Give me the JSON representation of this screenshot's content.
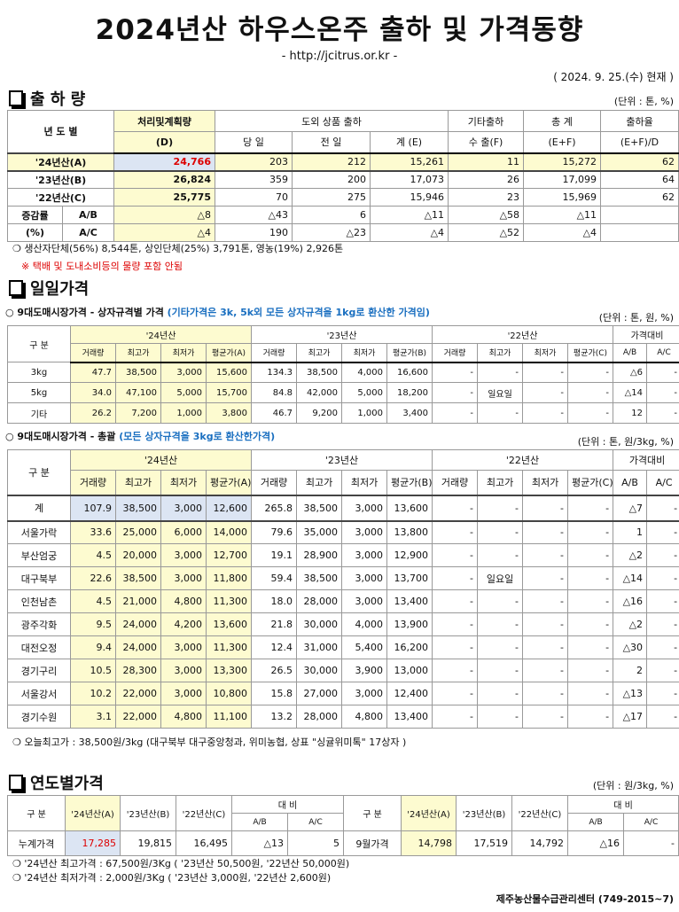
{
  "title": "2024년산 하우스온주 출하 및 가격동향",
  "url": "- http://jcitrus.or.kr -",
  "date": "( 2024. 9. 25.(수) 현재 )",
  "shipment": {
    "heading": "출 하 량",
    "unit": "(단위 : 톤, %)",
    "headers": {
      "year": "년 도 별",
      "plan": "처리및계획량",
      "plan_sub": "(D)",
      "outside": "도외 상품 출하",
      "today": "당 일",
      "prev": "전 일",
      "sum": "계 (E)",
      "other": "기타출하",
      "export": "수 출(F)",
      "total": "총   계",
      "total_sub": "(E+F)",
      "rate": "출하율",
      "rate_sub": "(E+F)/D"
    },
    "rows": [
      {
        "label": "'24년산(A)",
        "cells": [
          "24,766",
          "203",
          "212",
          "15,261",
          "11",
          "15,272",
          "62"
        ]
      },
      {
        "label": "'23년산(B)",
        "cells": [
          "26,824",
          "359",
          "200",
          "17,073",
          "26",
          "17,099",
          "64"
        ]
      },
      {
        "label": "'22년산(C)",
        "cells": [
          "25,775",
          "70",
          "275",
          "15,946",
          "23",
          "15,969",
          "62"
        ]
      }
    ],
    "change_label": "증감률",
    "change_pct": "(%)",
    "change": [
      {
        "label": "A/B",
        "cells": [
          "△8",
          "△43",
          "6",
          "△11",
          "△58",
          "△11",
          ""
        ]
      },
      {
        "label": "A/C",
        "cells": [
          "△4",
          "190",
          "△23",
          "△4",
          "△52",
          "△4",
          ""
        ]
      }
    ],
    "note1": "❍ 생산자단체(56%) 8,544톤, 상인단체(25%) 3,791톤, 영농(19%) 2,926톤",
    "note2": "※ 택배 및 도내소비등의 물량 포함 안됨"
  },
  "daily": {
    "heading": "일일가격",
    "spec": {
      "caption": "○ 9대도매시장가격 - 상자규격별 가격 ",
      "caption_blue": "(기타가격은 3k, 5k외 모든 상자규격을 1kg로 환산한 가격임)",
      "unit": "(단위 : 톤, 원, %)",
      "rows": [
        {
          "label": "3kg",
          "cells": [
            "47.7",
            "38,500",
            "3,000",
            "15,600",
            "134.3",
            "38,500",
            "4,000",
            "16,600",
            "-",
            "-",
            "-",
            "-",
            "△6",
            "-"
          ]
        },
        {
          "label": "5kg",
          "cells": [
            "34.0",
            "47,100",
            "5,000",
            "15,700",
            "84.8",
            "42,000",
            "5,000",
            "18,200",
            "-",
            "일요일",
            "-",
            "-",
            "△14",
            "-"
          ]
        },
        {
          "label": "기타",
          "cells": [
            "26.2",
            "7,200",
            "1,000",
            "3,800",
            "46.7",
            "9,200",
            "1,000",
            "3,400",
            "-",
            "-",
            "-",
            "-",
            "12",
            "-"
          ]
        }
      ]
    },
    "total": {
      "caption": "○ 9대도매시장가격 - 총괄 ",
      "caption_blue": "(모든 상자규격을 3kg로 환산한가격)",
      "unit": "(단위 : 톤, 원/3kg, %)",
      "rows": [
        {
          "label": "계",
          "cells": [
            "107.9",
            "38,500",
            "3,000",
            "12,600",
            "265.8",
            "38,500",
            "3,000",
            "13,600",
            "-",
            "-",
            "-",
            "-",
            "△7",
            "-"
          ]
        },
        {
          "label": "서울가락",
          "cells": [
            "33.6",
            "25,000",
            "6,000",
            "14,000",
            "79.6",
            "35,000",
            "3,000",
            "13,800",
            "-",
            "-",
            "-",
            "-",
            "1",
            "-"
          ]
        },
        {
          "label": "부산엄궁",
          "cells": [
            "4.5",
            "20,000",
            "3,000",
            "12,700",
            "19.1",
            "28,900",
            "3,000",
            "12,900",
            "-",
            "-",
            "-",
            "-",
            "△2",
            "-"
          ]
        },
        {
          "label": "대구북부",
          "cells": [
            "22.6",
            "38,500",
            "3,000",
            "11,800",
            "59.4",
            "38,500",
            "3,000",
            "13,700",
            "-",
            "일요일",
            "-",
            "-",
            "△14",
            "-"
          ]
        },
        {
          "label": "인천남촌",
          "cells": [
            "4.5",
            "21,000",
            "4,800",
            "11,300",
            "18.0",
            "28,000",
            "3,000",
            "13,400",
            "-",
            "-",
            "-",
            "-",
            "△16",
            "-"
          ]
        },
        {
          "label": "광주각화",
          "cells": [
            "9.5",
            "24,000",
            "4,200",
            "13,600",
            "21.8",
            "30,000",
            "4,000",
            "13,900",
            "-",
            "-",
            "-",
            "-",
            "△2",
            "-"
          ]
        },
        {
          "label": "대전오정",
          "cells": [
            "9.4",
            "24,000",
            "3,000",
            "11,300",
            "12.4",
            "31,000",
            "5,400",
            "16,200",
            "-",
            "-",
            "-",
            "-",
            "△30",
            "-"
          ]
        },
        {
          "label": "경기구리",
          "cells": [
            "10.5",
            "28,300",
            "3,000",
            "13,300",
            "26.5",
            "30,000",
            "3,900",
            "13,000",
            "-",
            "-",
            "-",
            "-",
            "2",
            "-"
          ]
        },
        {
          "label": "서울강서",
          "cells": [
            "10.2",
            "22,000",
            "3,000",
            "10,800",
            "15.8",
            "27,000",
            "3,000",
            "12,400",
            "-",
            "-",
            "-",
            "-",
            "△13",
            "-"
          ]
        },
        {
          "label": "경기수원",
          "cells": [
            "3.1",
            "22,000",
            "4,800",
            "11,100",
            "13.2",
            "28,000",
            "4,800",
            "13,400",
            "-",
            "-",
            "-",
            "-",
            "△17",
            "-"
          ]
        }
      ],
      "note": "❍ 오늘최고가 : 38,500원/3kg (대구북부  대구중앙청과,  위미농협,  상표 \"싱귤위미톡\"  17상자 )"
    },
    "headers": {
      "gubun": "구  분",
      "y24": "'24년산",
      "y23": "'23년산",
      "y22": "'22년산",
      "compare": "가격대비",
      "cols": [
        "거래량",
        "최고가",
        "최저가",
        "평균가(A)",
        "거래량",
        "최고가",
        "최저가",
        "평균가(B)",
        "거래량",
        "최고가",
        "최저가",
        "평균가(C)",
        "A/B",
        "A/C"
      ]
    }
  },
  "yearly": {
    "heading": "연도별가격",
    "unit": "(단위 : 원/3kg, %)",
    "headers": {
      "gubun": "구    분",
      "a": "'24년산(A)",
      "b": "'23년산(B)",
      "c": "'22년산(C)",
      "compare": "대      비",
      "ab": "A/B",
      "ac": "A/C"
    },
    "rows": [
      {
        "label": "누계가격",
        "cells": [
          "17,285",
          "19,815",
          "16,495",
          "△13",
          "5"
        ]
      },
      {
        "label": "9월가격",
        "cells": [
          "14,798",
          "17,519",
          "14,792",
          "△16",
          "-"
        ]
      }
    ],
    "note1": "❍  '24년산 최고가격 : 67,500원/3Kg ( '23년산 50,500원, '22년산 50,000원)",
    "note2": "❍  '24년산 최저가격 :   2,000원/3Kg ( '23년산   3,000원, '22년산  2,600원)"
  },
  "footer": "제주농산물수급관리센터 (749-2015~7)",
  "colors": {
    "highlight_yellow": "#fdfbd0",
    "highlight_blue": "#dce5f3",
    "red": "#d00000",
    "blue": "#1a6fc0"
  }
}
